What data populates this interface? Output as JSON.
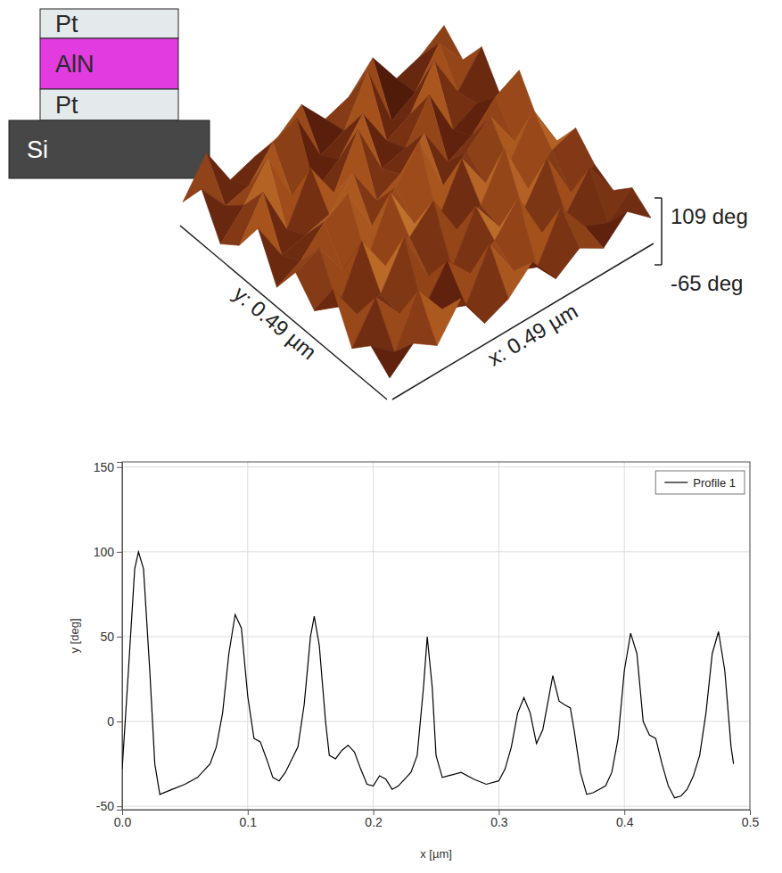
{
  "layer_stack": {
    "layers": [
      {
        "label": "Pt",
        "color": "#e4eaec"
      },
      {
        "label": "AlN",
        "color": "#e23be0"
      },
      {
        "label": "Pt",
        "color": "#e4eaec"
      },
      {
        "label": "Si",
        "color": "#474747"
      }
    ]
  },
  "chart_data": [
    {
      "type": "surface",
      "x_label": "x: 0.49 µm",
      "y_label": "y: 0.49 µm",
      "zlim": [
        -65,
        109
      ],
      "zticks": [
        {
          "value": 109,
          "label": "109 deg"
        },
        {
          "value": -65,
          "label": "-65 deg"
        }
      ],
      "z": [
        [
          -30,
          20,
          -20,
          60,
          -35,
          -10,
          45,
          -30,
          10,
          -25,
          30,
          -20
        ],
        [
          10,
          -40,
          75,
          -5,
          -30,
          85,
          -15,
          -40,
          70,
          -10,
          -35,
          15
        ],
        [
          -35,
          55,
          -20,
          -45,
          40,
          -25,
          20,
          90,
          -30,
          -20,
          60,
          -30
        ],
        [
          70,
          -25,
          -10,
          95,
          -35,
          -50,
          65,
          -20,
          -15,
          80,
          -40,
          -5
        ],
        [
          -20,
          -45,
          80,
          -15,
          20,
          75,
          -30,
          -5,
          100,
          -35,
          25,
          45
        ],
        [
          35,
          60,
          -30,
          -40,
          90,
          -20,
          -45,
          70,
          -25,
          -10,
          85,
          -25
        ],
        [
          -40,
          -10,
          50,
          85,
          -30,
          30,
          109,
          -35,
          15,
          65,
          -30,
          -15
        ],
        [
          65,
          -35,
          -20,
          -5,
          60,
          -40,
          -10,
          55,
          -50,
          -20,
          40,
          70
        ],
        [
          -15,
          80,
          -45,
          70,
          -25,
          95,
          -35,
          -20,
          75,
          -45,
          -15,
          -30
        ],
        [
          -50,
          10,
          90,
          -35,
          -60,
          -15,
          60,
          -40,
          -10,
          85,
          -25,
          50
        ],
        [
          45,
          -30,
          -15,
          55,
          80,
          -45,
          -20,
          90,
          -65,
          -30,
          55,
          -20
        ],
        [
          -25,
          60,
          -40,
          -20,
          -5,
          40,
          -30,
          -10,
          50,
          -35,
          -15,
          25
        ]
      ]
    },
    {
      "type": "line",
      "x_label": "x [µm]",
      "y_label": "y [deg]",
      "xlim": [
        0,
        0.5
      ],
      "ylim": [
        -52,
        153
      ],
      "xticks": [
        {
          "value": 0,
          "label": "0.0"
        },
        0.1,
        0.2,
        0.3,
        0.4,
        0.5
      ],
      "yticks": [
        -50,
        0,
        50,
        100,
        150
      ],
      "grid": true,
      "legend": "upper right",
      "x": [
        0,
        0.005,
        0.01,
        0.013,
        0.017,
        0.022,
        0.026,
        0.03,
        0.04,
        0.05,
        0.06,
        0.07,
        0.075,
        0.08,
        0.085,
        0.09,
        0.095,
        0.1,
        0.105,
        0.11,
        0.115,
        0.12,
        0.125,
        0.13,
        0.14,
        0.145,
        0.15,
        0.153,
        0.157,
        0.162,
        0.165,
        0.17,
        0.175,
        0.18,
        0.185,
        0.19,
        0.195,
        0.2,
        0.205,
        0.21,
        0.215,
        0.22,
        0.23,
        0.235,
        0.24,
        0.243,
        0.247,
        0.25,
        0.255,
        0.26,
        0.27,
        0.28,
        0.29,
        0.3,
        0.305,
        0.31,
        0.315,
        0.32,
        0.325,
        0.33,
        0.335,
        0.34,
        0.343,
        0.348,
        0.352,
        0.357,
        0.36,
        0.365,
        0.37,
        0.375,
        0.38,
        0.385,
        0.39,
        0.395,
        0.4,
        0.405,
        0.41,
        0.415,
        0.42,
        0.425,
        0.43,
        0.435,
        0.44,
        0.445,
        0.45,
        0.455,
        0.46,
        0.465,
        0.47,
        0.475,
        0.48,
        0.485,
        0.487
      ],
      "series": [
        {
          "name": "Profile 1",
          "color": "#000000",
          "values": [
            -28,
            30,
            90,
            100,
            90,
            30,
            -25,
            -43,
            -40,
            -37,
            -33,
            -25,
            -15,
            5,
            40,
            63,
            55,
            15,
            -10,
            -12,
            -22,
            -33,
            -35,
            -30,
            -15,
            10,
            50,
            62,
            45,
            0,
            -20,
            -22,
            -17,
            -14,
            -18,
            -28,
            -37,
            -38,
            -32,
            -34,
            -40,
            -38,
            -30,
            -20,
            20,
            50,
            20,
            -20,
            -33,
            -32,
            -30,
            -34,
            -37,
            -35,
            -28,
            -15,
            5,
            14,
            5,
            -13,
            -5,
            15,
            27,
            12,
            10,
            8,
            -5,
            -30,
            -43,
            -42,
            -40,
            -38,
            -30,
            -10,
            30,
            52,
            40,
            0,
            -8,
            -10,
            -25,
            -38,
            -45,
            -44,
            -40,
            -32,
            -20,
            5,
            40,
            53,
            30,
            -15,
            -25
          ]
        }
      ]
    }
  ]
}
